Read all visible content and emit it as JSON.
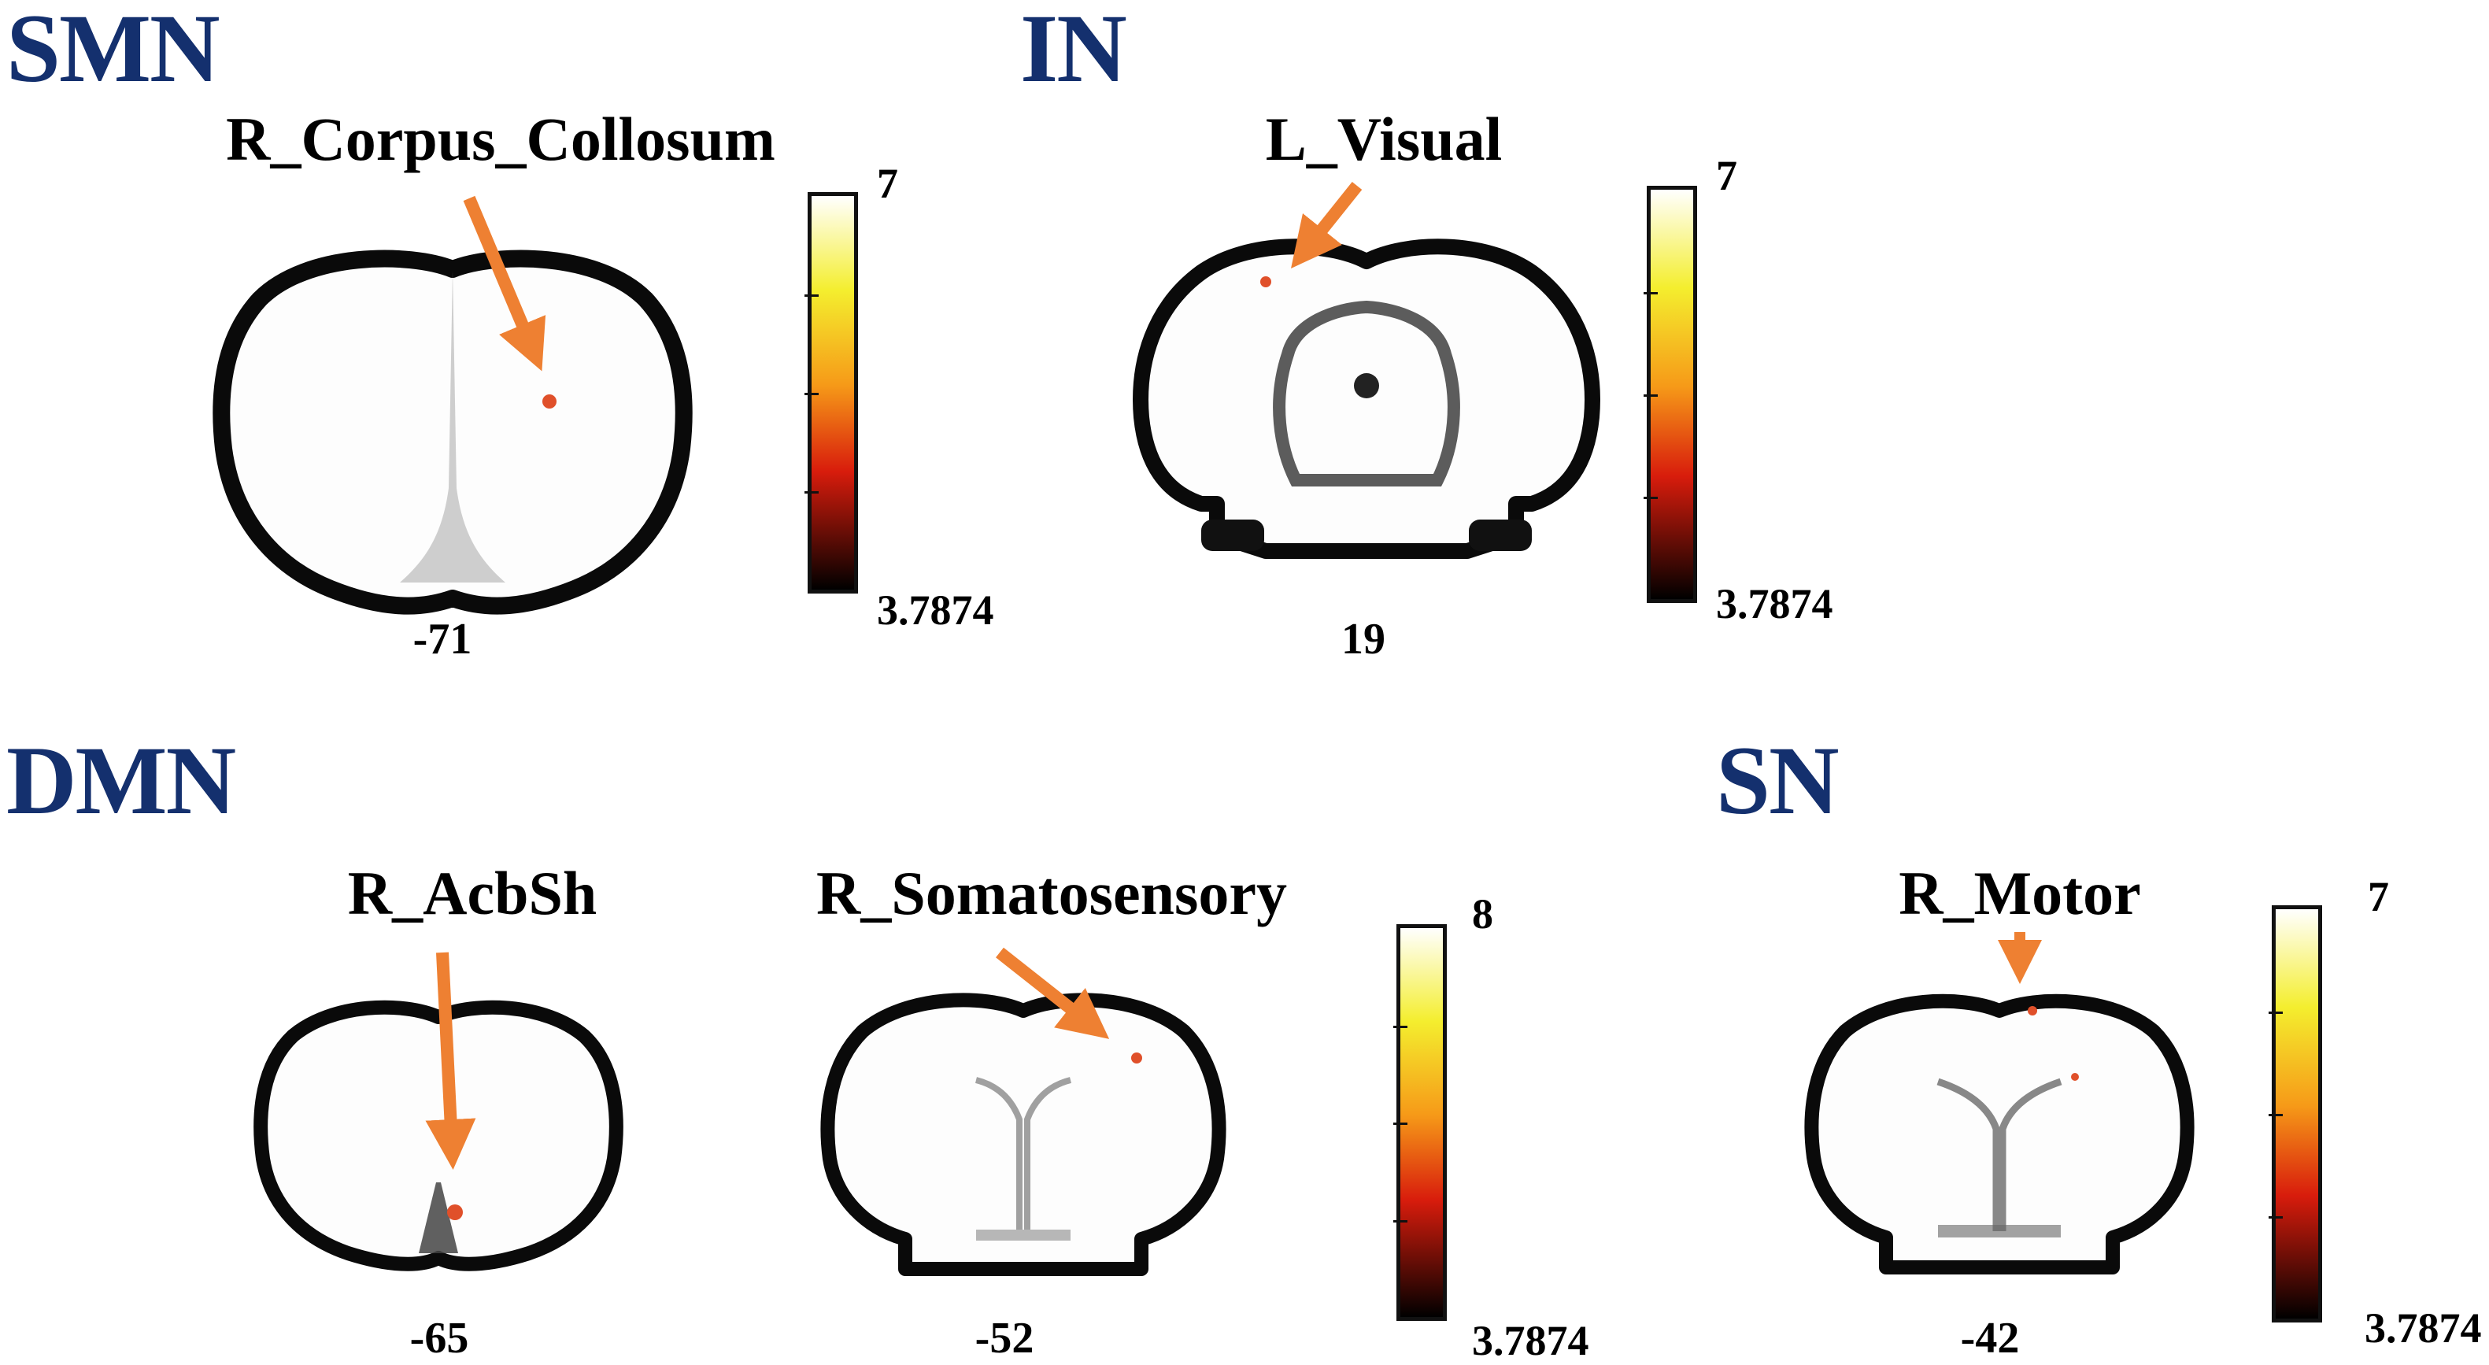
{
  "colors": {
    "heading": "#14306e",
    "arrow": "#ee8032",
    "brain_fill": "#fdfdfd",
    "brain_edge": "#0a0a0a",
    "blob": "#e0502a",
    "cbar_top": "#ffffff",
    "cbar_yellow": "#f4ee2e",
    "cbar_orange": "#f69a18",
    "cbar_red": "#d81c0c",
    "cbar_bottom": "#000000"
  },
  "colormap": "hot",
  "panels": [
    {
      "heading": "SMN"
    },
    {
      "heading": "IN"
    },
    {
      "heading": "DMN"
    },
    {
      "heading": "SN"
    }
  ],
  "regions": [
    {
      "label": "R_Corpus_Collosum",
      "slice": "-71"
    },
    {
      "label": "L_Visual",
      "slice": "19"
    },
    {
      "label": "R_AcbSh",
      "slice": "-65"
    },
    {
      "label": "R_Somatosensory",
      "slice": "-52"
    },
    {
      "label": "R_Motor",
      "slice": "-42"
    }
  ],
  "colorbars": [
    {
      "max": "7",
      "min": "3.7874"
    },
    {
      "max": "7",
      "min": "3.7874"
    },
    {
      "max": "8",
      "min": "3.7874"
    },
    {
      "max": "7",
      "min": "3.7874"
    }
  ]
}
